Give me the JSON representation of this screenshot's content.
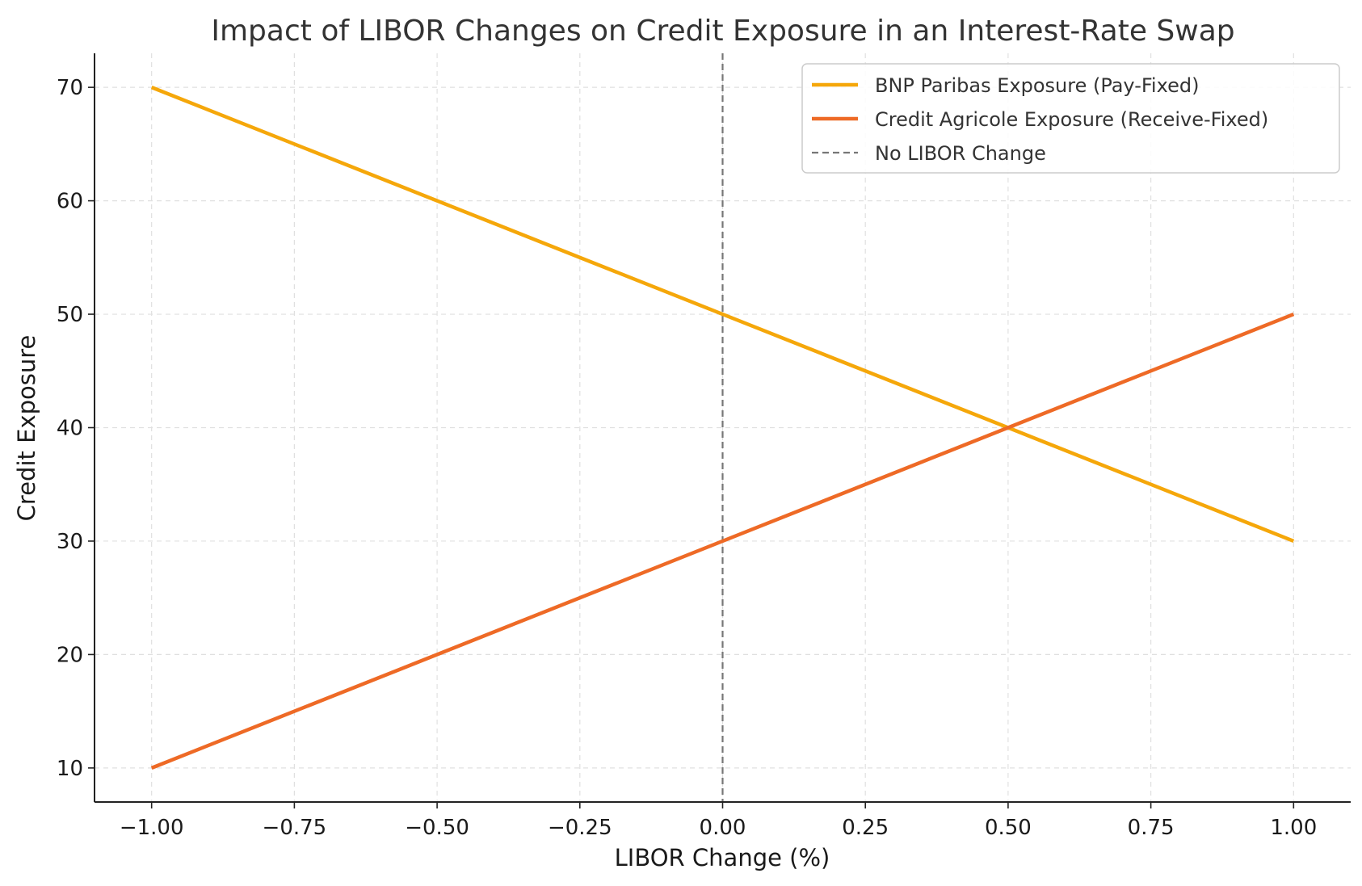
{
  "chart_data": {
    "type": "line",
    "title": "Impact of LIBOR Changes on Credit Exposure in an Interest-Rate Swap",
    "xlabel": "LIBOR Change (%)",
    "ylabel": "Credit Exposure",
    "xlim": [
      -1.1,
      1.1
    ],
    "ylim": [
      7,
      73
    ],
    "xticks": [
      -1.0,
      -0.75,
      -0.5,
      -0.25,
      0.0,
      0.25,
      0.5,
      0.75,
      1.0
    ],
    "xtick_labels": [
      "−1.00",
      "−0.75",
      "−0.50",
      "−0.25",
      "0.00",
      "0.25",
      "0.50",
      "0.75",
      "1.00"
    ],
    "yticks": [
      10,
      20,
      30,
      40,
      50,
      60,
      70
    ],
    "ytick_labels": [
      "10",
      "20",
      "30",
      "40",
      "50",
      "60",
      "70"
    ],
    "grid": true,
    "legend_position": "top-right",
    "series": [
      {
        "name": "BNP Paribas Exposure (Pay-Fixed)",
        "color": "#f5a70a",
        "style": "solid",
        "x": [
          -1.0,
          1.0
        ],
        "y": [
          70,
          30
        ]
      },
      {
        "name": "Credit Agricole Exposure (Receive-Fixed)",
        "color": "#ee6a26",
        "style": "solid",
        "x": [
          -1.0,
          1.0
        ],
        "y": [
          10,
          50
        ]
      }
    ],
    "reference_lines": [
      {
        "name": "No LIBOR Change",
        "orientation": "vertical",
        "x": 0.0,
        "color": "#777777",
        "style": "dashed"
      }
    ]
  }
}
